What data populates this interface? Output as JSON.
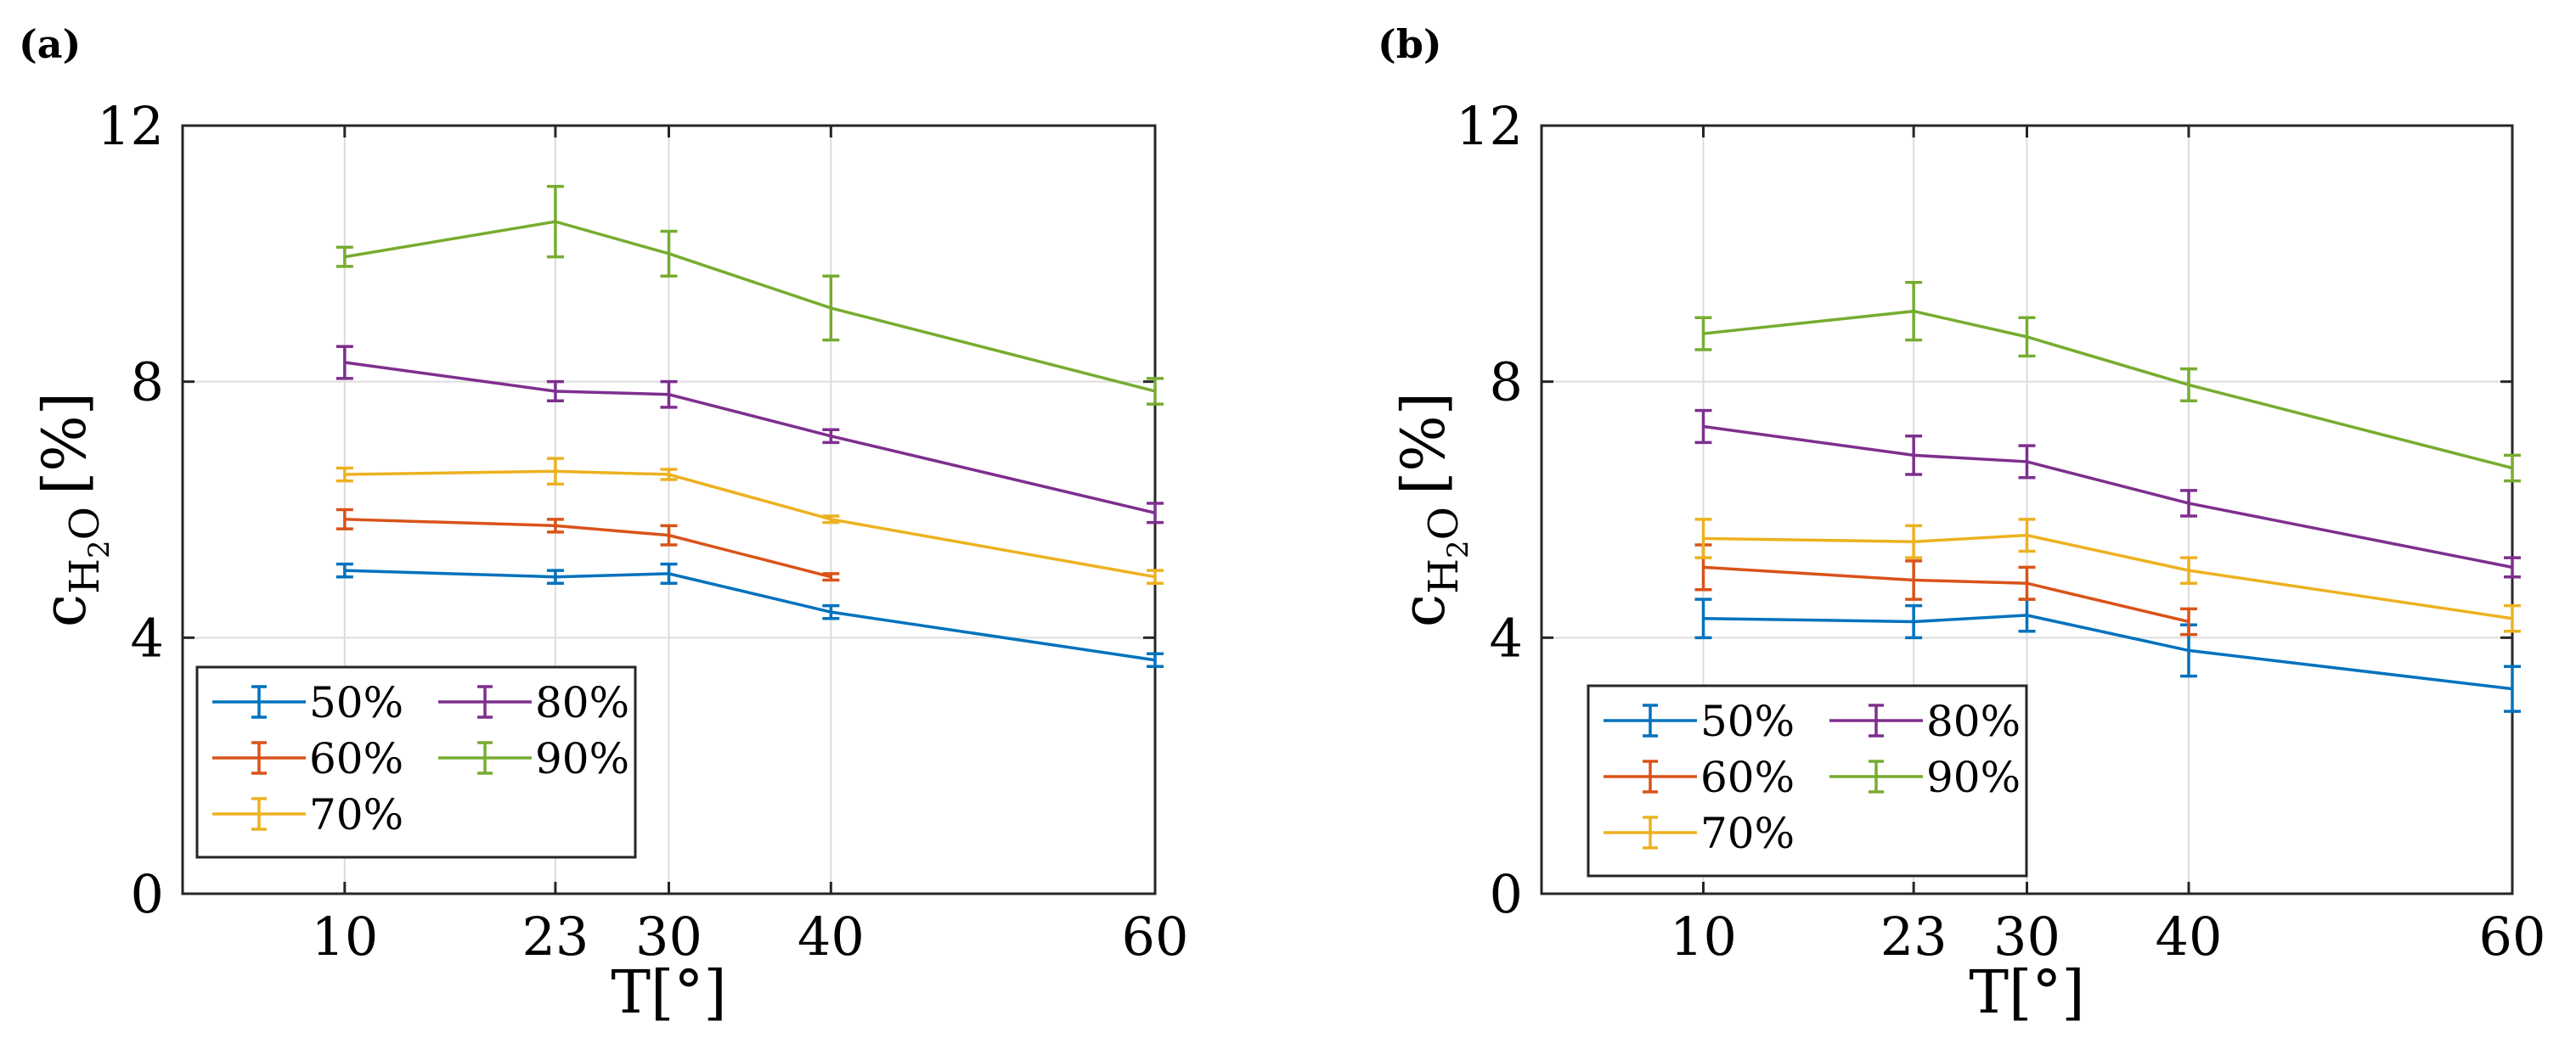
{
  "chart_data": [
    {
      "panel": "(a)",
      "type": "line",
      "xlabel": "T[°]",
      "ylabel": "c",
      "ylabel_sub": "H",
      "ylabel_sub_num": "2",
      "ylabel_post": "O",
      "ylabel_unit": "[%]",
      "x": [
        10,
        23,
        30,
        40,
        60
      ],
      "x_ticks": [
        "10",
        "23",
        "30",
        "40",
        "60"
      ],
      "y_ticks": [
        "0",
        "4",
        "8",
        "12"
      ],
      "xlim": [
        0,
        60
      ],
      "ylim": [
        0,
        12
      ],
      "grid": true,
      "legend_placement": "bottom-left",
      "series": [
        {
          "name": "50%",
          "color": "#0072BD",
          "values": [
            5.05,
            4.95,
            5.0,
            4.4,
            3.65
          ],
          "errors": [
            0.1,
            0.1,
            0.15,
            0.1,
            0.1
          ]
        },
        {
          "name": "60%",
          "color": "#D95319",
          "values": [
            5.85,
            5.75,
            5.6,
            4.95,
            null
          ],
          "errors": [
            0.15,
            0.1,
            0.15,
            0.05,
            0
          ]
        },
        {
          "name": "70%",
          "color": "#EDB120",
          "values": [
            6.55,
            6.6,
            6.55,
            5.85,
            4.95
          ],
          "errors": [
            0.1,
            0.2,
            0.08,
            0.05,
            0.1
          ]
        },
        {
          "name": "80%",
          "color": "#7E2F8E",
          "values": [
            8.3,
            7.85,
            7.8,
            7.15,
            5.95
          ],
          "errors": [
            0.25,
            0.15,
            0.2,
            0.1,
            0.15
          ]
        },
        {
          "name": "90%",
          "color": "#77AC30",
          "values": [
            9.95,
            10.5,
            10.0,
            9.15,
            7.85
          ],
          "errors": [
            0.15,
            0.55,
            0.35,
            0.5,
            0.2
          ]
        }
      ]
    },
    {
      "panel": "(b)",
      "type": "line",
      "xlabel": "T[°]",
      "ylabel": "c",
      "ylabel_sub": "H",
      "ylabel_sub_num": "2",
      "ylabel_post": "O",
      "ylabel_unit": "[%]",
      "x": [
        10,
        23,
        30,
        40,
        60
      ],
      "x_ticks": [
        "10",
        "23",
        "30",
        "40",
        "60"
      ],
      "y_ticks": [
        "0",
        "4",
        "8",
        "12"
      ],
      "xlim": [
        0,
        60
      ],
      "ylim": [
        0,
        12
      ],
      "grid": true,
      "legend_placement": "bottom-left",
      "series": [
        {
          "name": "50%",
          "color": "#0072BD",
          "values": [
            4.3,
            4.25,
            4.35,
            3.8,
            3.2
          ],
          "errors": [
            0.3,
            0.25,
            0.25,
            0.4,
            0.35
          ]
        },
        {
          "name": "60%",
          "color": "#D95319",
          "values": [
            5.1,
            4.9,
            4.85,
            4.25,
            null
          ],
          "errors": [
            0.35,
            0.3,
            0.25,
            0.2,
            0
          ]
        },
        {
          "name": "70%",
          "color": "#EDB120",
          "values": [
            5.55,
            5.5,
            5.6,
            5.05,
            4.3
          ],
          "errors": [
            0.3,
            0.25,
            0.25,
            0.2,
            0.2
          ]
        },
        {
          "name": "80%",
          "color": "#7E2F8E",
          "values": [
            7.3,
            6.85,
            6.75,
            6.1,
            5.1
          ],
          "errors": [
            0.25,
            0.3,
            0.25,
            0.2,
            0.15
          ]
        },
        {
          "name": "90%",
          "color": "#77AC30",
          "values": [
            8.75,
            9.1,
            8.7,
            7.95,
            6.65
          ],
          "errors": [
            0.25,
            0.45,
            0.3,
            0.25,
            0.2
          ]
        }
      ]
    }
  ]
}
